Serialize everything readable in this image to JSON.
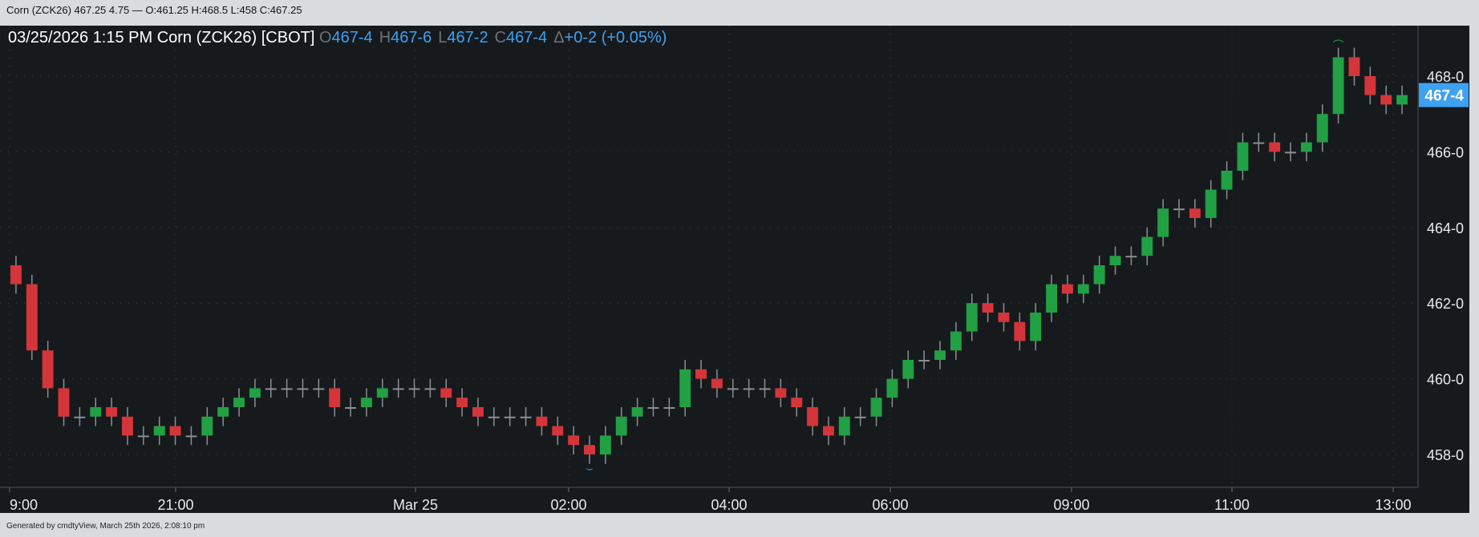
{
  "topbar": {
    "text": "Corn (ZCK26) 467.25 4.75 — O:461.25 H:468.5 L:458 C:467.25"
  },
  "legend": {
    "datetime": "03/25/2026  1:15 PM",
    "symbol": "Corn (ZCK26) [CBOT]",
    "o_label": "O",
    "o_value": "467-4",
    "h_label": "H",
    "h_value": "467-6",
    "l_label": "L",
    "l_value": "467-2",
    "c_label": "C",
    "c_value": "467-4",
    "delta_label": "Δ",
    "delta_value": "+0-2 (+0.05%)"
  },
  "footer": {
    "text": "Generated by cmdtyView, March 25th 2026, 2:08:10 pm"
  },
  "colors": {
    "up": "#21a044",
    "down": "#d5353a",
    "wick": "#8a8f93",
    "accent": "#3ea1f2",
    "background": "#161a1d"
  },
  "chart_data": {
    "type": "candlestick",
    "title": "",
    "ylim": [
      457,
      469.25
    ],
    "yticks": [
      {
        "v": 458,
        "label": "458-0"
      },
      {
        "v": 460,
        "label": "460-0"
      },
      {
        "v": 462,
        "label": "462-0"
      },
      {
        "v": 464,
        "label": "464-0"
      },
      {
        "v": 466,
        "label": "466-0"
      },
      {
        "v": 468,
        "label": "468-0"
      }
    ],
    "xticks": [
      "9:00",
      "21:00",
      "Mar 25",
      "02:00",
      "04:00",
      "06:00",
      "09:00",
      "11:00",
      "13:00"
    ],
    "last_price": {
      "value": 467.5,
      "label": "467-4"
    },
    "high_marker": 468.5,
    "low_marker": 458,
    "first_open": 463,
    "closes": [
      462.5,
      460.75,
      459.75,
      459,
      459,
      459.25,
      459,
      458.5,
      458.5,
      458.75,
      458.5,
      458.5,
      459,
      459.25,
      459.5,
      459.75,
      459.75,
      459.75,
      459.75,
      459.75,
      459.25,
      459.25,
      459.5,
      459.75,
      459.75,
      459.75,
      459.75,
      459.5,
      459.25,
      459,
      459,
      459,
      459,
      458.75,
      458.5,
      458.25,
      458,
      458.5,
      459,
      459.25,
      459.25,
      459.25,
      460.25,
      460,
      459.75,
      459.75,
      459.75,
      459.75,
      459.5,
      459.25,
      458.75,
      458.5,
      459,
      459,
      459.5,
      460,
      460.5,
      460.5,
      460.75,
      461.25,
      462,
      461.75,
      461.5,
      461,
      461.75,
      462.5,
      462.25,
      462.5,
      463,
      463.25,
      463.25,
      463.75,
      464.5,
      464.5,
      464.25,
      465,
      465.5,
      466.25,
      466.25,
      466,
      466,
      466.25,
      467,
      468.5,
      468,
      467.5,
      467.25,
      467.5
    ]
  }
}
